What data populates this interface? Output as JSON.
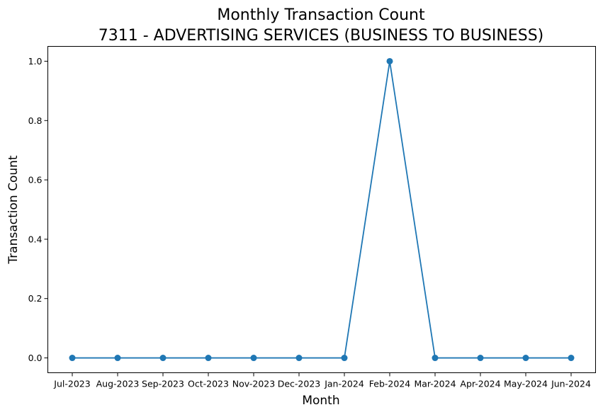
{
  "chart_data": {
    "type": "line",
    "title_lines": [
      "Monthly Transaction Count",
      "7311 - ADVERTISING SERVICES (BUSINESS TO BUSINESS)"
    ],
    "xlabel": "Month",
    "ylabel": "Transaction Count",
    "categories": [
      "Jul-2023",
      "Aug-2023",
      "Sep-2023",
      "Oct-2023",
      "Nov-2023",
      "Dec-2023",
      "Jan-2024",
      "Feb-2024",
      "Mar-2024",
      "Apr-2024",
      "May-2024",
      "Jun-2024"
    ],
    "series": [
      {
        "values": [
          0,
          0,
          0,
          0,
          0,
          0,
          0,
          1,
          0,
          0,
          0,
          0
        ],
        "color": "#1f77b4",
        "marker": "circle"
      }
    ],
    "yticks": [
      "0.0",
      "0.2",
      "0.4",
      "0.6",
      "0.8",
      "1.0"
    ],
    "ylim": [
      -0.05,
      1.05
    ],
    "grid": false,
    "legend": "none"
  }
}
